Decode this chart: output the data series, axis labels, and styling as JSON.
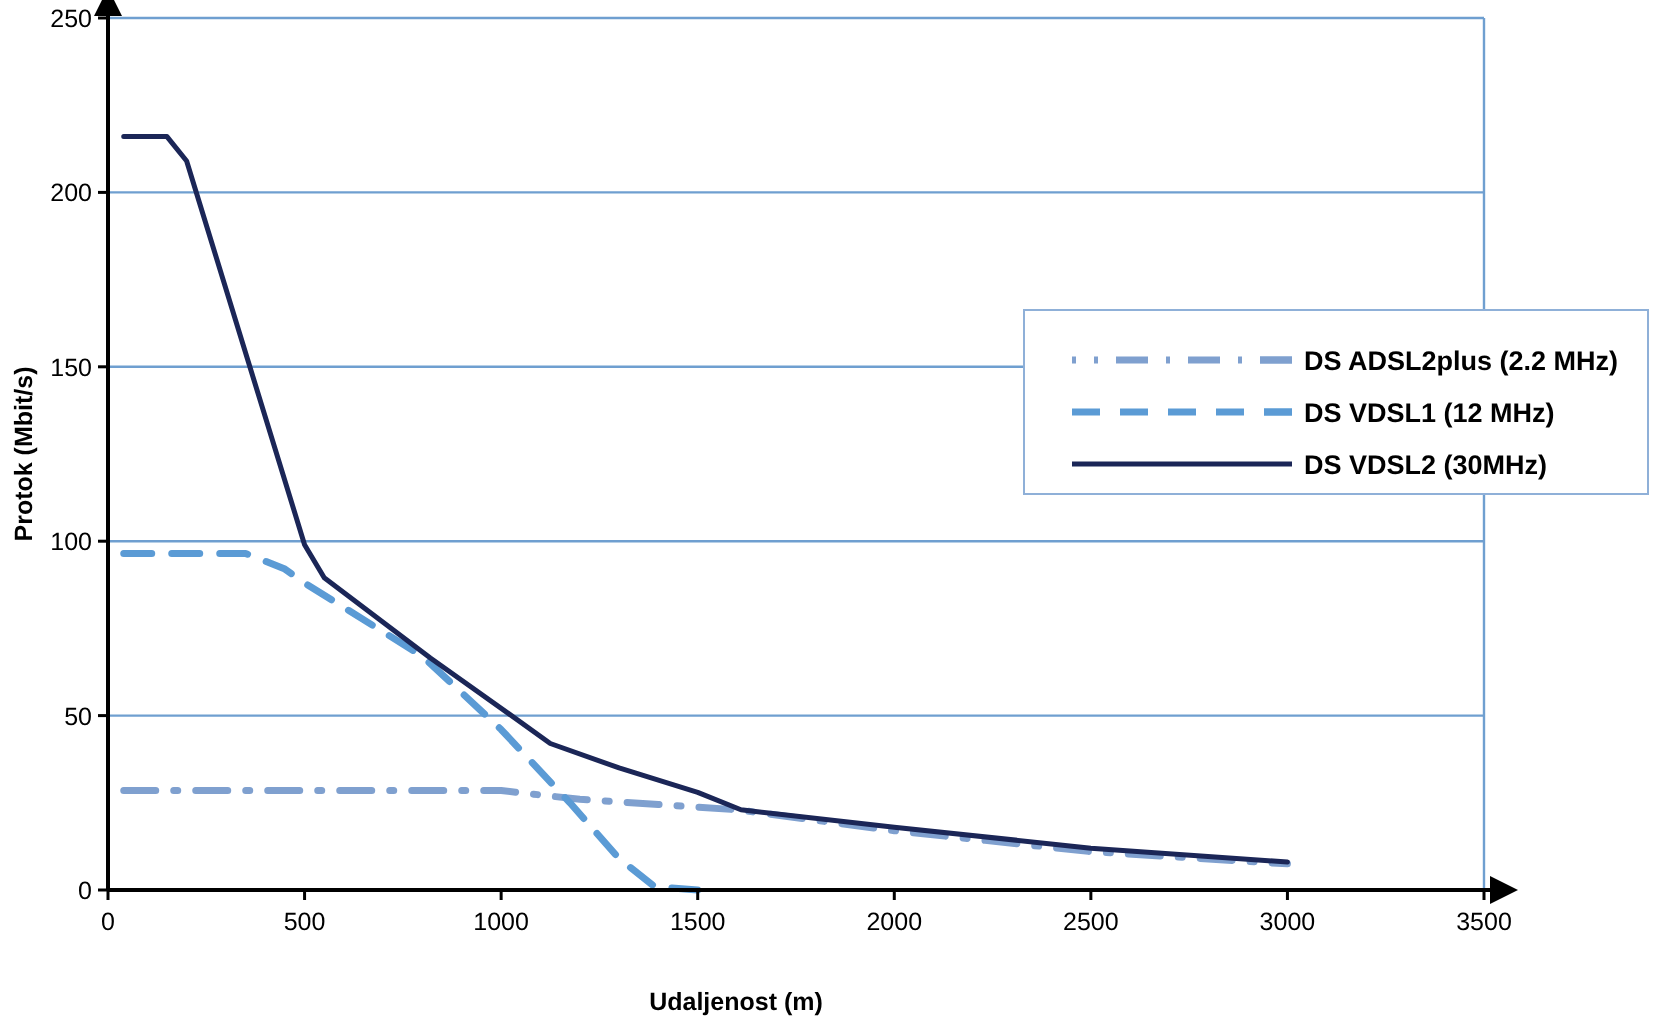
{
  "chart_data": {
    "type": "line",
    "xlabel": "Udaljenost (m)",
    "ylabel": "Protok (Mbit/s)",
    "xlim": [
      0,
      3500
    ],
    "xticks": [
      0,
      500,
      1000,
      1500,
      2000,
      2500,
      3000,
      3500
    ],
    "ylim": [
      0,
      250
    ],
    "yticks": [
      0,
      50,
      100,
      150,
      200,
      250
    ],
    "grid": "y",
    "legend": "right",
    "marker": "none",
    "series": [
      {
        "name": "DS ADSL2plus (2.2 MHz)",
        "color": "#7fa0cf",
        "line_style": "dashdot",
        "x": [
          40,
          400,
          800,
          1000,
          1200,
          1400,
          1600,
          2000,
          2500,
          3000
        ],
        "values": [
          28.5,
          28.5,
          28.5,
          28.5,
          26,
          24.5,
          23,
          17,
          11,
          7.5
        ]
      },
      {
        "name": "DS VDSL1 (12 MHz)",
        "color": "#5b9bd5",
        "line_style": "dashed",
        "x": [
          40,
          350,
          450,
          500,
          800,
          1000,
          1175,
          1300,
          1390,
          1500
        ],
        "values": [
          96.5,
          96.5,
          92,
          88,
          67,
          46,
          25,
          9,
          1,
          0
        ]
      },
      {
        "name": "DS VDSL2 (30MHz)",
        "color": "#1b2657",
        "line_style": "solid",
        "x": [
          40,
          150,
          200,
          500,
          550,
          820,
          1020,
          1125,
          1300,
          1500,
          1610,
          2000,
          2500,
          3000
        ],
        "values": [
          216,
          216,
          209,
          99,
          89.5,
          66.5,
          50.5,
          42,
          35,
          28,
          23,
          18,
          12,
          8
        ]
      }
    ]
  }
}
